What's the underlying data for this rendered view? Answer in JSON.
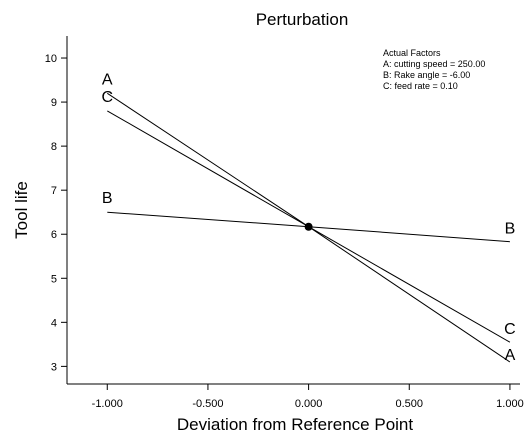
{
  "chart_data": {
    "type": "line",
    "title": "Perturbation",
    "xlabel": "Deviation from Reference Point",
    "ylabel": "Tool life",
    "xlim": [
      -1.2,
      1.05
    ],
    "ylim": [
      2.6,
      10.5
    ],
    "x_ticks": [
      -1.0,
      -0.5,
      0.0,
      0.5,
      1.0
    ],
    "x_tick_labels": [
      "-1.000",
      "-0.500",
      "0.000",
      "0.500",
      "1.000"
    ],
    "y_ticks": [
      3,
      4,
      5,
      6,
      7,
      8,
      9,
      10
    ],
    "y_tick_labels": [
      "3",
      "4",
      "5",
      "6",
      "7",
      "8",
      "9",
      "10"
    ],
    "grid": false,
    "reference_point": {
      "x": 0.0,
      "y": 6.17
    },
    "series": [
      {
        "name": "A",
        "x": [
          -1.0,
          0.0,
          1.0
        ],
        "values": [
          9.2,
          6.17,
          3.1
        ],
        "labels_at": [
          -1.0,
          1.0
        ]
      },
      {
        "name": "B",
        "x": [
          -1.0,
          0.0,
          1.0
        ],
        "values": [
          6.5,
          6.17,
          5.83
        ],
        "labels_at": [
          -1.0,
          1.0
        ]
      },
      {
        "name": "C",
        "x": [
          -1.0,
          0.0,
          1.0
        ],
        "values": [
          8.8,
          6.17,
          3.55
        ],
        "labels_at": [
          -1.0,
          1.0
        ]
      }
    ],
    "annotation": {
      "heading": "Actual Factors",
      "lines": [
        "A: cutting speed = 250.00",
        "B: Rake angle = -6.00",
        "C: feed rate = 0.10"
      ]
    },
    "colors": {
      "line": "#000000",
      "background": "#ffffff"
    }
  }
}
